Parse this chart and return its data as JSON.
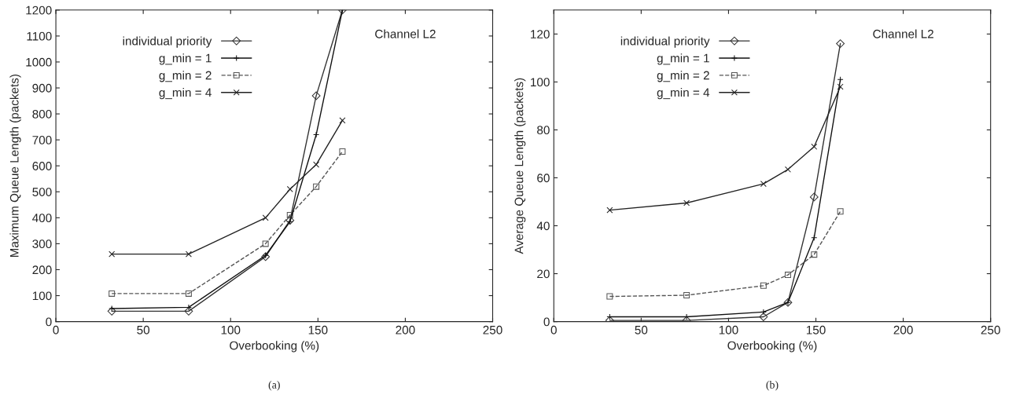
{
  "chart_data": [
    {
      "type": "line",
      "xlabel": "Overbooking (%)",
      "ylabel": "Maximum Queue Length (packets)",
      "x": [
        32,
        76,
        120,
        134,
        149,
        164
      ],
      "xlim": [
        0,
        250
      ],
      "xticks": [
        0,
        50,
        100,
        150,
        200,
        250
      ],
      "ylim": [
        0,
        1200
      ],
      "yticks": [
        0,
        100,
        200,
        300,
        400,
        500,
        600,
        700,
        800,
        900,
        1000,
        1100,
        1200
      ],
      "legend": "top",
      "grid": false,
      "annotations": [
        "Channel L2",
        "(a)"
      ],
      "series": [
        {
          "name": "individual priority",
          "color": "#333333",
          "marker": "diamond",
          "line_style": "solid",
          "values": [
            40,
            40,
            250,
            390,
            870,
            1200
          ]
        },
        {
          "name": "g_min = 1",
          "color": "#111111",
          "marker": "plus",
          "line_style": "solid",
          "values": [
            50,
            55,
            255,
            385,
            720,
            1200
          ]
        },
        {
          "name": "g_min = 2",
          "color": "#555555",
          "marker": "square",
          "line_style": "dashed",
          "values": [
            108,
            108,
            300,
            410,
            520,
            655
          ]
        },
        {
          "name": "g_min = 4",
          "color": "#222222",
          "marker": "cross",
          "line_style": "solid",
          "values": [
            260,
            260,
            400,
            510,
            605,
            775
          ]
        }
      ]
    },
    {
      "type": "line",
      "xlabel": "Overbooking (%)",
      "ylabel": "Average Queue Length (packets)",
      "x": [
        32,
        76,
        120,
        134,
        149,
        164
      ],
      "xlim": [
        0,
        250
      ],
      "xticks": [
        0,
        50,
        100,
        150,
        200,
        250
      ],
      "ylim": [
        0,
        130
      ],
      "yticks": [
        0,
        20,
        40,
        60,
        80,
        100,
        120
      ],
      "legend": "top",
      "grid": false,
      "annotations": [
        "Channel L2",
        "(b)"
      ],
      "series": [
        {
          "name": "individual priority",
          "color": "#333333",
          "marker": "diamond",
          "line_style": "solid",
          "values": [
            0.5,
            0.5,
            2,
            8,
            52,
            116
          ]
        },
        {
          "name": "g_min = 1",
          "color": "#111111",
          "marker": "plus",
          "line_style": "solid",
          "values": [
            2,
            2,
            4,
            8,
            35,
            101
          ]
        },
        {
          "name": "g_min = 2",
          "color": "#555555",
          "marker": "square",
          "line_style": "dashed",
          "values": [
            10.5,
            11,
            15,
            19.5,
            28,
            46
          ]
        },
        {
          "name": "g_min = 4",
          "color": "#222222",
          "marker": "cross",
          "line_style": "solid",
          "values": [
            46.5,
            49.5,
            57.5,
            63.5,
            73,
            98
          ]
        }
      ]
    }
  ]
}
